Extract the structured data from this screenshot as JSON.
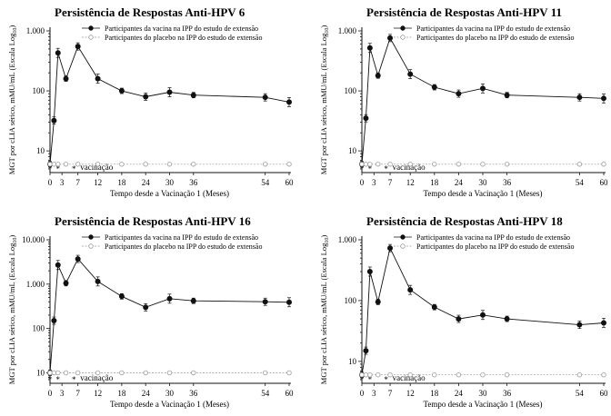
{
  "figure": {
    "shared": {
      "xlabel": "Tempo desde a Vacinação 1 (Meses)",
      "ylabel": "MGT por cLIA sérico, mMU/mL (Escala Log",
      "ylabel_sub": "10",
      "ylabel_end": ")",
      "vaccination_label": "vacinação",
      "vaccination_marks": [
        "*",
        "*",
        "*"
      ],
      "legend": [
        "Participantes da vacina na IPP do estudo de extensão",
        "Participantes do placebo na IPP do estudo de extensão"
      ],
      "colors": {
        "vaccine": "#111111",
        "placebo": "#9a9a9a",
        "axis": "#111111"
      }
    }
  },
  "chart_data": [
    {
      "type": "line",
      "title": "Persistência de Respostas Anti-HPV 6",
      "x": [
        0,
        1,
        2,
        4,
        7,
        12,
        18,
        24,
        30,
        36,
        54,
        60
      ],
      "xticks": [
        0,
        3,
        7,
        12,
        18,
        24,
        30,
        36,
        54,
        60
      ],
      "yscale": "log",
      "ylim": [
        5,
        1000
      ],
      "yticks": [
        {
          "v": 10,
          "label": "10"
        },
        {
          "v": 100,
          "label": "100"
        },
        {
          "v": 1000,
          "label": "1.000"
        }
      ],
      "series": [
        {
          "name": "Participantes da vacina na IPP do estudo de extensão",
          "marker": "filled",
          "values": [
            6,
            32,
            430,
            160,
            550,
            160,
            100,
            80,
            95,
            85,
            78,
            65
          ]
        },
        {
          "name": "Participantes do placebo na IPP do estudo de extensão",
          "marker": "open",
          "values": [
            6,
            6,
            6,
            6,
            6,
            6,
            6,
            6,
            6,
            6,
            6,
            6
          ]
        }
      ]
    },
    {
      "type": "line",
      "title": "Persistência de Respostas Anti-HPV 11",
      "x": [
        0,
        1,
        2,
        4,
        7,
        12,
        18,
        24,
        30,
        36,
        54,
        60
      ],
      "xticks": [
        0,
        3,
        7,
        12,
        18,
        24,
        30,
        36,
        54,
        60
      ],
      "yscale": "log",
      "ylim": [
        5,
        1000
      ],
      "yticks": [
        {
          "v": 10,
          "label": "10"
        },
        {
          "v": 100,
          "label": "100"
        },
        {
          "v": 1000,
          "label": "1.000"
        }
      ],
      "series": [
        {
          "name": "Participantes da vacina na IPP do estudo de extensão",
          "marker": "filled",
          "values": [
            6,
            35,
            520,
            180,
            760,
            190,
            115,
            90,
            110,
            85,
            78,
            75
          ]
        },
        {
          "name": "Participantes do placebo na IPP do estudo de extensão",
          "marker": "open",
          "values": [
            6,
            6,
            6,
            6,
            6,
            6,
            6,
            6,
            6,
            6,
            6,
            6
          ]
        }
      ]
    },
    {
      "type": "line",
      "title": "Persistência de Respostas Anti-HPV 16",
      "x": [
        0,
        1,
        2,
        4,
        7,
        12,
        18,
        24,
        30,
        36,
        54,
        60
      ],
      "xticks": [
        0,
        3,
        7,
        12,
        18,
        24,
        30,
        36,
        54,
        60
      ],
      "yscale": "log",
      "ylim": [
        7,
        10000
      ],
      "yticks": [
        {
          "v": 10,
          "label": "10"
        },
        {
          "v": 100,
          "label": "100"
        },
        {
          "v": 1000,
          "label": "1.000"
        },
        {
          "v": 10000,
          "label": "10.000"
        }
      ],
      "series": [
        {
          "name": "Participantes da vacina na IPP do estudo de extensão",
          "marker": "filled",
          "values": [
            10,
            150,
            2700,
            1050,
            3700,
            1150,
            530,
            300,
            470,
            420,
            400,
            390
          ]
        },
        {
          "name": "Participantes do placebo na IPP do estudo de extensão",
          "marker": "open",
          "values": [
            10,
            10,
            10,
            10,
            10,
            10,
            10,
            10,
            10,
            10,
            10,
            10
          ]
        }
      ]
    },
    {
      "type": "line",
      "title": "Persistência de Respostas Anti-HPV 18",
      "x": [
        0,
        1,
        2,
        4,
        7,
        12,
        18,
        24,
        30,
        36,
        54,
        60
      ],
      "xticks": [
        0,
        3,
        7,
        12,
        18,
        24,
        30,
        36,
        54,
        60
      ],
      "yscale": "log",
      "ylim": [
        5,
        1000
      ],
      "yticks": [
        {
          "v": 10,
          "label": "10"
        },
        {
          "v": 100,
          "label": "100"
        },
        {
          "v": 1000,
          "label": "1.000"
        }
      ],
      "series": [
        {
          "name": "Participantes da vacina na IPP do estudo de extensão",
          "marker": "filled",
          "values": [
            6,
            15,
            300,
            95,
            730,
            150,
            78,
            50,
            58,
            50,
            40,
            43
          ]
        },
        {
          "name": "Participantes do placebo na IPP do estudo de extensão",
          "marker": "open",
          "values": [
            6,
            6,
            6,
            6,
            6,
            6,
            6,
            6,
            6,
            6,
            6,
            6
          ]
        }
      ]
    }
  ]
}
